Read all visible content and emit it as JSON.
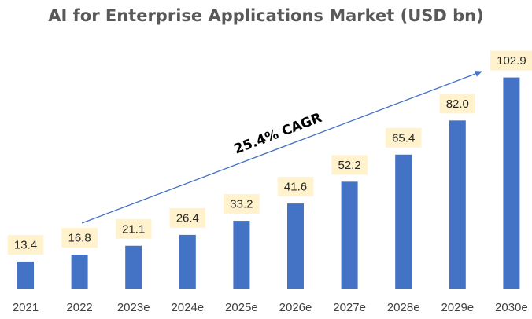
{
  "chart_data": {
    "type": "bar",
    "title": "AI for Enterprise Applications Market (USD bn)",
    "categories": [
      "2021",
      "2022",
      "2023e",
      "2024e",
      "2025e",
      "2026e",
      "2027e",
      "2028e",
      "2029e",
      "2030e"
    ],
    "values": [
      13.4,
      16.8,
      21.1,
      26.4,
      33.2,
      41.6,
      52.2,
      65.4,
      82.0,
      102.9
    ],
    "value_labels": [
      "13.4",
      "16.8",
      "21.1",
      "26.4",
      "33.2",
      "41.6",
      "52.2",
      "65.4",
      "82.0",
      "102.9"
    ],
    "xlabel": "",
    "ylabel": "",
    "ylim": [
      0,
      110
    ],
    "grid": false,
    "legend": "none",
    "annotation": {
      "text": "25.4% CAGR",
      "from_category": "2022",
      "to_category": "2030e"
    },
    "colors": {
      "bar": "#4472C4",
      "label_bg": "#FFF2CC",
      "arrow": "#4472C4",
      "title": "#595959",
      "axis_text": "#404040"
    }
  }
}
